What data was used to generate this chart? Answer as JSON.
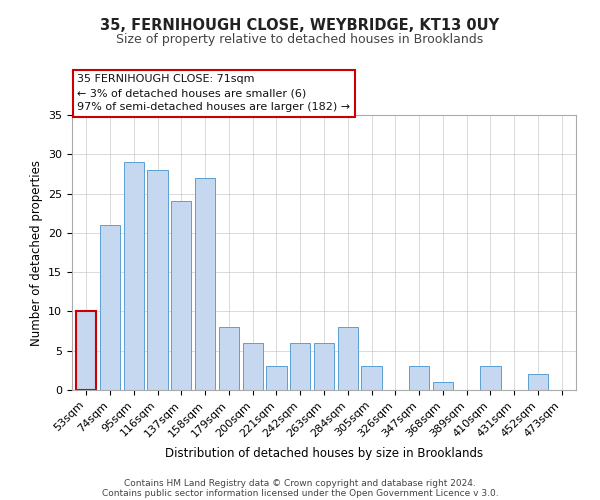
{
  "title": "35, FERNIHOUGH CLOSE, WEYBRIDGE, KT13 0UY",
  "subtitle": "Size of property relative to detached houses in Brooklands",
  "xlabel": "Distribution of detached houses by size in Brooklands",
  "ylabel": "Number of detached properties",
  "footer_line1": "Contains HM Land Registry data © Crown copyright and database right 2024.",
  "footer_line2": "Contains public sector information licensed under the Open Government Licence v 3.0.",
  "categories": [
    "53sqm",
    "74sqm",
    "95sqm",
    "116sqm",
    "137sqm",
    "158sqm",
    "179sqm",
    "200sqm",
    "221sqm",
    "242sqm",
    "263sqm",
    "284sqm",
    "305sqm",
    "326sqm",
    "347sqm",
    "368sqm",
    "389sqm",
    "410sqm",
    "431sqm",
    "452sqm",
    "473sqm"
  ],
  "values": [
    10,
    21,
    29,
    28,
    24,
    27,
    8,
    6,
    3,
    6,
    6,
    8,
    3,
    0,
    3,
    1,
    0,
    3,
    0,
    2,
    0
  ],
  "highlight_index": 0,
  "bar_color": "#c5d8f0",
  "highlight_edge_color": "#cc0000",
  "normal_edge_color": "#5a9fd4",
  "ylim": [
    0,
    35
  ],
  "yticks": [
    0,
    5,
    10,
    15,
    20,
    25,
    30,
    35
  ],
  "annotation_line1": "35 FERNIHOUGH CLOSE: 71sqm",
  "annotation_line2": "← 3% of detached houses are smaller (6)",
  "annotation_line3": "97% of semi-detached houses are larger (182) →",
  "annotation_box_color": "#ffffff",
  "annotation_box_edge": "#cc0000",
  "title_fontsize": 10.5,
  "subtitle_fontsize": 9,
  "axis_label_fontsize": 8.5,
  "tick_fontsize": 8,
  "annotation_fontsize": 8,
  "footer_fontsize": 6.5
}
